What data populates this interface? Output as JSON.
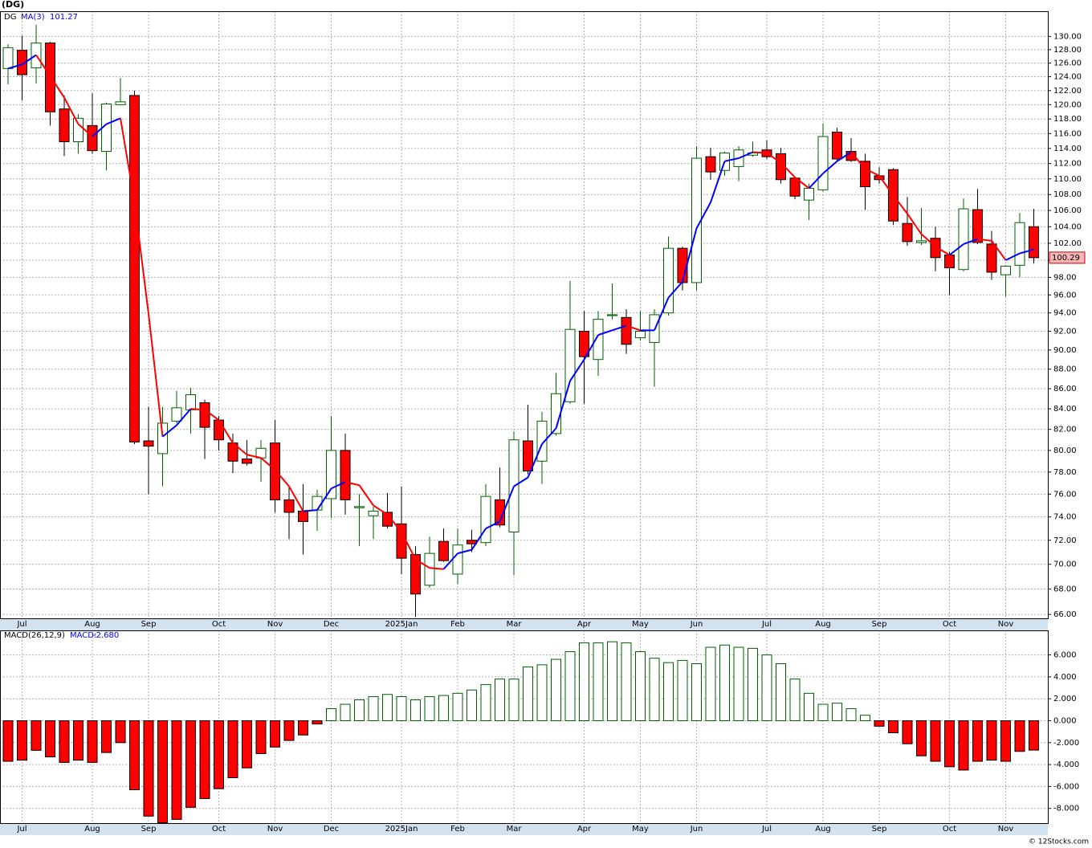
{
  "chart_data": [
    {
      "type": "candlestick",
      "title": "(DG)",
      "symbol": "DG",
      "categories": [
        null,
        "Jul",
        null,
        null,
        null,
        null,
        "Aug",
        null,
        null,
        null,
        "Sep",
        null,
        null,
        null,
        null,
        "Oct",
        null,
        null,
        null,
        "Nov",
        null,
        null,
        null,
        "Dec",
        null,
        null,
        null,
        null,
        "2025Jan",
        null,
        null,
        null,
        "Feb",
        null,
        null,
        null,
        "Mar",
        null,
        null,
        null,
        null,
        "Apr",
        null,
        null,
        null,
        "May",
        null,
        null,
        null,
        "Jun",
        null,
        null,
        null,
        null,
        "Jul",
        null,
        null,
        null,
        "Aug",
        null,
        null,
        null,
        "Sep",
        null,
        null,
        null,
        null,
        "Oct",
        null,
        null,
        null,
        "Nov",
        null,
        null
      ],
      "open": [
        125.2,
        127.9,
        125.3,
        129,
        119.4,
        114.9,
        117.1,
        113.6,
        120.0,
        121.3,
        80.9,
        79.7,
        82.8,
        83.9,
        84.6,
        82.9,
        80.7,
        79.2,
        79.3,
        80.7,
        75.5,
        74.5,
        74.6,
        75.6,
        80.0,
        74.8,
        74.1,
        74.4,
        73.4,
        70.8,
        68.3,
        71.9,
        69.2,
        72.0,
        71.8,
        75.5,
        72.7,
        80.9,
        79.0,
        81.6,
        84.7,
        92.0,
        89.0,
        93.7,
        93.5,
        91.3,
        90.8,
        94.0,
        101.4,
        97.4,
        112.9,
        111.1,
        111.6,
        113.1,
        113.8,
        113.3,
        110.1,
        107.3,
        108.6,
        116.2,
        113.6,
        112.3,
        110.4,
        111.2,
        104.4,
        102.1,
        102.6,
        100.6,
        98.9,
        106.1,
        101.9,
        98.3,
        99.4,
        104.0
      ],
      "high": [
        128.8,
        130.1,
        131.8,
        129.2,
        121.3,
        118.7,
        121.6,
        120.3,
        123.8,
        122.0,
        84.2,
        84.2,
        85.8,
        86.1,
        84.9,
        83.3,
        81.6,
        81.0,
        81.0,
        82.9,
        76.7,
        76.9,
        76.4,
        83.3,
        81.6,
        76.0,
        74.9,
        76.1,
        76.7,
        71.5,
        72.3,
        73.0,
        73.0,
        72.9,
        76.9,
        78.4,
        81.8,
        84.4,
        83.7,
        87.6,
        97.6,
        94.2,
        94.2,
        97.3,
        94.4,
        94.2,
        94.4,
        102.8,
        101.6,
        114.3,
        114.1,
        113.6,
        114.3,
        114.9,
        115.1,
        114.1,
        110.3,
        109.4,
        117.4,
        116.8,
        115.4,
        113.3,
        111.5,
        111.4,
        107.7,
        106.3,
        104.0,
        101.0,
        107.5,
        108.7,
        103.5,
        99.4,
        105.7,
        106.2
      ],
      "low": [
        122.9,
        120.6,
        123.0,
        117.1,
        113.0,
        113.3,
        113.3,
        111.1,
        119.9,
        80.6,
        76.0,
        76.7,
        82.6,
        81.6,
        79.2,
        80.0,
        77.9,
        78.6,
        77.1,
        74.4,
        72.1,
        70.8,
        72.8,
        73.9,
        74.2,
        71.5,
        72.1,
        73.0,
        69.2,
        65.8,
        68.1,
        70.2,
        68.4,
        71.0,
        71.5,
        73.1,
        69.1,
        77.8,
        76.9,
        81.4,
        84.5,
        84.5,
        87.3,
        93.3,
        89.6,
        91.0,
        86.2,
        93.7,
        96.5,
        96.5,
        109.9,
        110.4,
        109.7,
        112.9,
        112.6,
        109.4,
        107.4,
        104.8,
        108.4,
        112.4,
        112.2,
        106.1,
        109.4,
        104.2,
        101.7,
        101.8,
        98.7,
        96.0,
        98.7,
        101.9,
        97.7,
        95.8,
        98.0,
        99.6
      ],
      "close": [
        128.3,
        124.3,
        129.0,
        119,
        114.9,
        118.1,
        113.7,
        120.1,
        120.4,
        80.8,
        80.4,
        82.6,
        84.1,
        85.4,
        82.2,
        81.0,
        79.0,
        78.8,
        80.2,
        75.5,
        74.4,
        73.6,
        75.8,
        80.0,
        75.5,
        74.9,
        74.5,
        73.2,
        70.5,
        67.6,
        70.9,
        70.3,
        71.6,
        71.7,
        75.8,
        73.3,
        81.0,
        78.1,
        82.8,
        85.5,
        92.2,
        89.3,
        93.3,
        93.8,
        90.6,
        92.0,
        93.8,
        101.4,
        97.4,
        112.7,
        110.9,
        113.4,
        113.8,
        113.4,
        112.9,
        109.9,
        107.8,
        108.8,
        115.6,
        112.6,
        112.4,
        109.0,
        109.9,
        104.7,
        102.2,
        102.3,
        100.3,
        99.1,
        106.2,
        102.1,
        98.6,
        99.3,
        104.5,
        100.29
      ],
      "up_color": "#006000",
      "down_color": "#ff0000",
      "ma": {
        "name": "MA(3)",
        "up_color": "#0000ff",
        "down_color": "#ff0000",
        "values": [
          125.2,
          125.8,
          127.2,
          124.1,
          121.0,
          117.3,
          115.6,
          117.3,
          118.1,
          107.1,
          93.9,
          81.3,
          82.4,
          84.0,
          83.9,
          82.9,
          80.7,
          79.6,
          79.3,
          78.2,
          76.7,
          74.5,
          74.6,
          76.5,
          77.1,
          76.8,
          75.0,
          74.2,
          72.7,
          70.4,
          69.7,
          69.6,
          70.9,
          71.2,
          73.0,
          73.6,
          76.7,
          77.5,
          80.6,
          82.1,
          86.8,
          89.0,
          91.6,
          92.1,
          92.6,
          92.1,
          92.1,
          95.7,
          97.5,
          103.8,
          107.0,
          112.3,
          112.7,
          113.5,
          113.4,
          112.1,
          110.2,
          108.8,
          110.7,
          112.3,
          113.5,
          111.3,
          110.4,
          107.9,
          105.6,
          103.1,
          101.6,
          100.6,
          101.9,
          102.5,
          102.3,
          100.0,
          100.8,
          101.27
        ]
      },
      "log_scale": true,
      "grid": true,
      "ylim": [
        65.7,
        133.9
      ],
      "yticks": [
        {
          "value": 66,
          "label": "66.00"
        },
        {
          "value": 68,
          "label": "68.00"
        },
        {
          "value": 70,
          "label": "70.00"
        },
        {
          "value": 72,
          "label": "72.00"
        },
        {
          "value": 74,
          "label": "74.00"
        },
        {
          "value": 76,
          "label": "76.00"
        },
        {
          "value": 78,
          "label": "78.00"
        },
        {
          "value": 80,
          "label": "80.00"
        },
        {
          "value": 82,
          "label": "82.00"
        },
        {
          "value": 84,
          "label": "84.00"
        },
        {
          "value": 86,
          "label": "86.00"
        },
        {
          "value": 88,
          "label": "88.00"
        },
        {
          "value": 90,
          "label": "90.00"
        },
        {
          "value": 92,
          "label": "92.00"
        },
        {
          "value": 94,
          "label": "94.00"
        },
        {
          "value": 96,
          "label": "96.00"
        },
        {
          "value": 98,
          "label": "98.00"
        },
        {
          "value": 100,
          "label": "100.00"
        },
        {
          "value": 102,
          "label": "102.00"
        },
        {
          "value": 104,
          "label": "104.00"
        },
        {
          "value": 106,
          "label": "106.00"
        },
        {
          "value": 108,
          "label": "108.00"
        },
        {
          "value": 110,
          "label": "110.00"
        },
        {
          "value": 112,
          "label": "112.00"
        },
        {
          "value": 114,
          "label": "114.00"
        },
        {
          "value": 116,
          "label": "116.00"
        },
        {
          "value": 118,
          "label": "118.00"
        },
        {
          "value": 120,
          "label": "120.00"
        },
        {
          "value": 122,
          "label": "122.00"
        },
        {
          "value": 124,
          "label": "124.00"
        },
        {
          "value": 126,
          "label": "126.00"
        },
        {
          "value": 128,
          "label": "128.00"
        },
        {
          "value": 130,
          "label": "130.00"
        }
      ]
    },
    {
      "type": "bar",
      "name": "MACD(26,12,9)",
      "value_name": "MACD:",
      "categories": [
        null,
        "Jul",
        null,
        null,
        null,
        null,
        "Aug",
        null,
        null,
        null,
        "Sep",
        null,
        null,
        null,
        null,
        "Oct",
        null,
        null,
        null,
        "Nov",
        null,
        null,
        null,
        "Dec",
        null,
        null,
        null,
        null,
        "2025Jan",
        null,
        null,
        null,
        "Feb",
        null,
        null,
        null,
        "Mar",
        null,
        null,
        null,
        null,
        "Apr",
        null,
        null,
        null,
        "May",
        null,
        null,
        null,
        "Jun",
        null,
        null,
        null,
        null,
        "Jul",
        null,
        null,
        null,
        "Aug",
        null,
        null,
        null,
        "Sep",
        null,
        null,
        null,
        null,
        "Oct",
        null,
        null,
        null,
        "Nov",
        null,
        null
      ],
      "values": [
        -3.7,
        -3.6,
        -2.7,
        -3.3,
        -3.8,
        -3.6,
        -3.8,
        -2.9,
        -2.0,
        -6.3,
        -8.7,
        -9.3,
        -9.0,
        -7.9,
        -7.1,
        -6.2,
        -5.2,
        -4.3,
        -3.0,
        -2.4,
        -1.8,
        -1.3,
        -0.3,
        1.1,
        1.5,
        1.9,
        2.2,
        2.4,
        2.2,
        1.9,
        2.2,
        2.3,
        2.5,
        2.8,
        3.3,
        3.8,
        3.8,
        4.9,
        5.1,
        5.6,
        6.3,
        7.1,
        7.1,
        7.2,
        7.1,
        6.3,
        5.7,
        5.3,
        5.5,
        5.2,
        6.7,
        6.9,
        6.7,
        6.6,
        6.0,
        5.2,
        3.8,
        2.5,
        1.5,
        1.6,
        1.1,
        0.5,
        -0.5,
        -1.1,
        -2.1,
        -3.2,
        -3.7,
        -4.2,
        -4.5,
        -3.7,
        -3.6,
        -3.7,
        -2.8,
        -2.68
      ],
      "last_value_label": "-2.680",
      "up_color": "#006000",
      "down_color": "#ff0000",
      "grid": true,
      "ylim": [
        -9.34,
        8.24
      ],
      "yticks": [
        {
          "value": -8,
          "label": "-8.000"
        },
        {
          "value": -6,
          "label": "-6.000"
        },
        {
          "value": -4,
          "label": "-4.000"
        },
        {
          "value": -2,
          "label": "-2.000"
        },
        {
          "value": 0,
          "label": "0.000"
        },
        {
          "value": 2,
          "label": "2.000"
        },
        {
          "value": 4,
          "label": "4.000"
        },
        {
          "value": 6,
          "label": "6.000"
        }
      ]
    }
  ],
  "footer": "© 12Stocks.com"
}
